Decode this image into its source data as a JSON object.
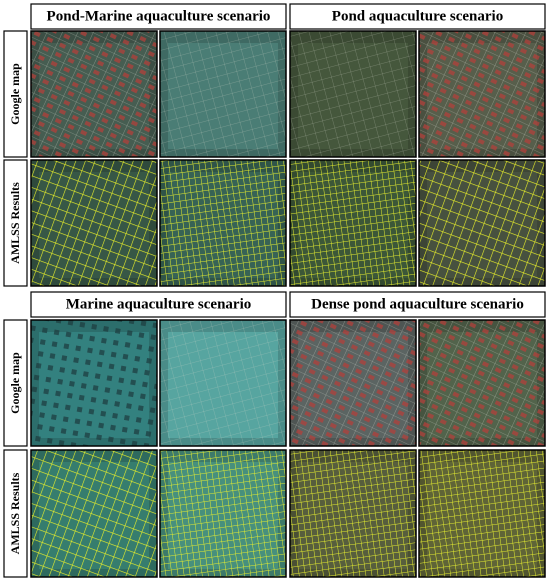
{
  "sections": [
    {
      "scenarios": [
        "Pond-Marine aquaculture scenario",
        "Pond aquaculture scenario"
      ],
      "row_labels": [
        "Google map",
        "AMLSS Results"
      ]
    },
    {
      "scenarios": [
        "Marine aquaculture scenario",
        "Dense pond aquaculture scenario"
      ],
      "row_labels": [
        "Google map",
        "AMLSS Results"
      ]
    }
  ]
}
